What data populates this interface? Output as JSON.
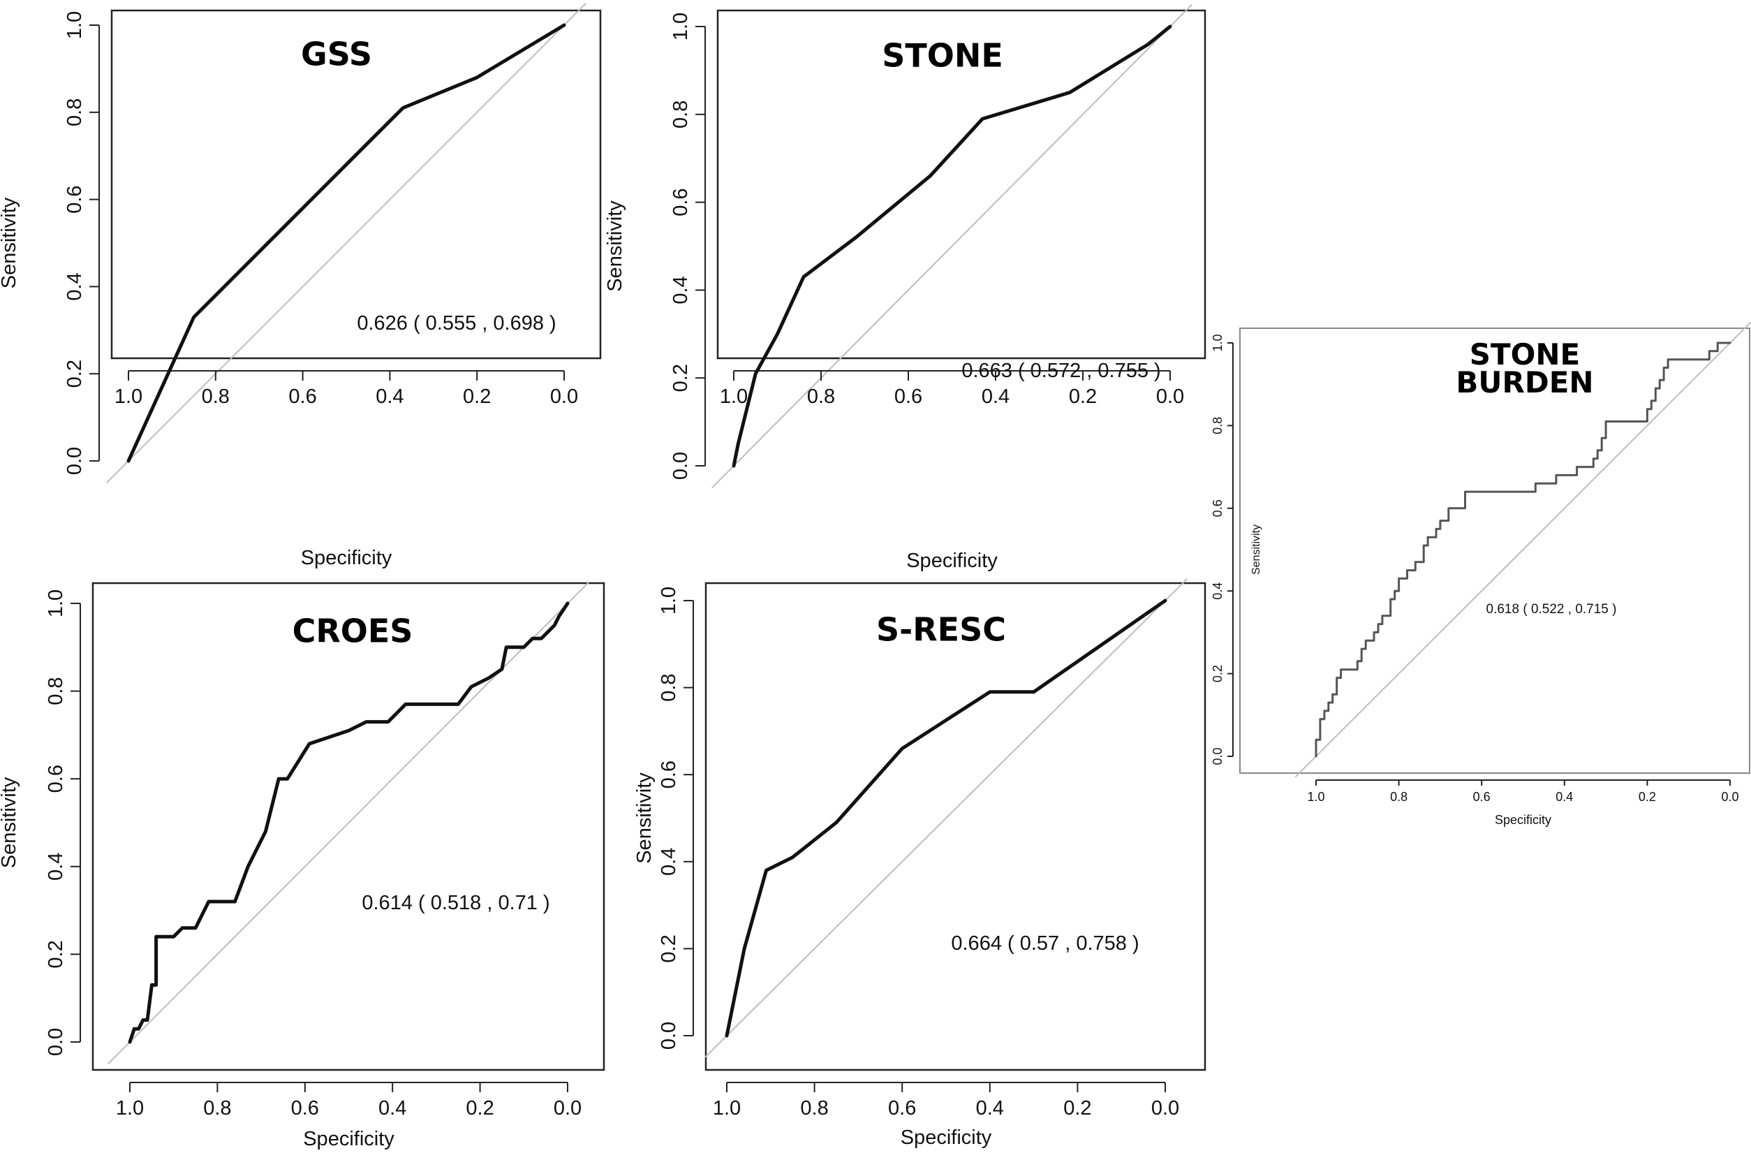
{
  "chart_data": [
    {
      "type": "line",
      "title": "GSS",
      "xlabel": "Specificity",
      "ylabel": "Sensitivity",
      "xlim": [
        1.0,
        0.0
      ],
      "ylim": [
        0.0,
        1.0
      ],
      "x_ticks": [
        "1.0",
        "0.8",
        "0.6",
        "0.4",
        "0.2",
        "0.0"
      ],
      "y_ticks": [
        "0.0",
        "0.2",
        "0.4",
        "0.6",
        "0.8",
        "1.0"
      ],
      "annotation": "0.626 ( 0.555 ,  0.698 )",
      "series": [
        {
          "specificity": [
            1.0,
            0.85,
            0.65,
            0.5,
            0.37,
            0.2,
            0.0
          ],
          "sensitivity": [
            0.0,
            0.33,
            0.53,
            0.68,
            0.81,
            0.88,
            1.0
          ]
        }
      ]
    },
    {
      "type": "line",
      "title": "STONE",
      "xlabel": "Specificity",
      "ylabel": "Sensitivity",
      "xlim": [
        1.0,
        0.0
      ],
      "ylim": [
        0.0,
        1.0
      ],
      "x_ticks": [
        "1.0",
        "0.8",
        "0.6",
        "0.4",
        "0.2",
        "0.0"
      ],
      "y_ticks": [
        "0.0",
        "0.2",
        "0.4",
        "0.6",
        "0.8",
        "1.0"
      ],
      "annotation": "0.663 ( 0.572 ,  0.755 )",
      "series": [
        {
          "specificity": [
            1.0,
            0.99,
            0.95,
            0.9,
            0.84,
            0.72,
            0.55,
            0.43,
            0.23,
            0.05,
            0.0
          ],
          "sensitivity": [
            0.0,
            0.05,
            0.21,
            0.3,
            0.43,
            0.52,
            0.66,
            0.79,
            0.85,
            0.96,
            1.0
          ]
        }
      ]
    },
    {
      "type": "line",
      "title": "CROES",
      "xlabel": "Specificity",
      "ylabel": "Sensitivity",
      "xlim": [
        1.0,
        0.0
      ],
      "ylim": [
        0.0,
        1.0
      ],
      "x_ticks": [
        "1.0",
        "0.8",
        "0.6",
        "0.4",
        "0.2",
        "0.0"
      ],
      "y_ticks": [
        "0.0",
        "0.2",
        "0.4",
        "0.6",
        "0.8",
        "1.0"
      ],
      "annotation": "0.614 ( 0.518 ,  0.71 )",
      "series": [
        {
          "specificity": [
            1.0,
            0.99,
            0.98,
            0.97,
            0.96,
            0.95,
            0.94,
            0.94,
            0.9,
            0.88,
            0.85,
            0.82,
            0.76,
            0.73,
            0.69,
            0.66,
            0.64,
            0.59,
            0.5,
            0.46,
            0.41,
            0.37,
            0.25,
            0.22,
            0.18,
            0.15,
            0.14,
            0.12,
            0.1,
            0.08,
            0.06,
            0.03,
            0.02,
            0.0
          ],
          "sensitivity": [
            0.0,
            0.03,
            0.03,
            0.05,
            0.05,
            0.13,
            0.13,
            0.24,
            0.24,
            0.26,
            0.26,
            0.32,
            0.32,
            0.4,
            0.48,
            0.6,
            0.6,
            0.68,
            0.71,
            0.73,
            0.73,
            0.77,
            0.77,
            0.81,
            0.83,
            0.85,
            0.9,
            0.9,
            0.9,
            0.92,
            0.92,
            0.95,
            0.97,
            1.0
          ]
        }
      ]
    },
    {
      "type": "line",
      "title": "S-RESC",
      "xlabel": "Specificity",
      "ylabel": "Sensitivity",
      "xlim": [
        1.0,
        0.0
      ],
      "ylim": [
        0.0,
        1.0
      ],
      "x_ticks": [
        "1.0",
        "0.8",
        "0.6",
        "0.4",
        "0.2",
        "0.0"
      ],
      "y_ticks": [
        "0.0",
        "0.2",
        "0.4",
        "0.6",
        "0.8",
        "1.0"
      ],
      "annotation": "0.664 ( 0.57 ,  0.758 )",
      "series": [
        {
          "specificity": [
            1.0,
            0.96,
            0.91,
            0.85,
            0.75,
            0.6,
            0.4,
            0.3,
            0.0
          ],
          "sensitivity": [
            0.0,
            0.2,
            0.38,
            0.41,
            0.49,
            0.66,
            0.79,
            0.79,
            1.0
          ]
        }
      ]
    },
    {
      "type": "line",
      "title": "STONE BURDEN",
      "title_lines": [
        "STONE",
        "BURDEN"
      ],
      "xlabel": "Specificity",
      "ylabel": "Sensitivity",
      "xlim": [
        1.0,
        0.0
      ],
      "ylim": [
        0.0,
        1.0
      ],
      "x_ticks": [
        "1.0",
        "0.8",
        "0.6",
        "0.4",
        "0.2",
        "0.0"
      ],
      "y_ticks": [
        "0.0",
        "0.2",
        "0.4",
        "0.6",
        "0.8",
        "1.0"
      ],
      "annotation": "0.618 ( 0.522 ,  0.715 )",
      "series": [
        {
          "specificity": [
            1.0,
            1.0,
            0.99,
            0.99,
            0.98,
            0.98,
            0.97,
            0.97,
            0.96,
            0.96,
            0.95,
            0.95,
            0.94,
            0.94,
            0.9,
            0.9,
            0.89,
            0.89,
            0.88,
            0.88,
            0.86,
            0.86,
            0.85,
            0.85,
            0.84,
            0.84,
            0.82,
            0.82,
            0.81,
            0.81,
            0.8,
            0.8,
            0.78,
            0.78,
            0.76,
            0.76,
            0.74,
            0.74,
            0.73,
            0.73,
            0.71,
            0.71,
            0.7,
            0.7,
            0.68,
            0.68,
            0.64,
            0.64,
            0.47,
            0.47,
            0.42,
            0.42,
            0.37,
            0.37,
            0.33,
            0.33,
            0.32,
            0.32,
            0.31,
            0.31,
            0.3,
            0.3,
            0.29,
            0.29,
            0.2,
            0.2,
            0.19,
            0.19,
            0.18,
            0.18,
            0.17,
            0.17,
            0.16,
            0.16,
            0.15,
            0.15,
            0.05,
            0.05,
            0.03,
            0.03,
            0.0
          ],
          "sensitivity": [
            0.0,
            0.04,
            0.04,
            0.09,
            0.09,
            0.11,
            0.11,
            0.13,
            0.13,
            0.15,
            0.15,
            0.19,
            0.19,
            0.21,
            0.21,
            0.23,
            0.23,
            0.26,
            0.26,
            0.28,
            0.28,
            0.3,
            0.3,
            0.32,
            0.32,
            0.34,
            0.34,
            0.38,
            0.38,
            0.4,
            0.4,
            0.43,
            0.43,
            0.45,
            0.45,
            0.47,
            0.47,
            0.51,
            0.51,
            0.53,
            0.53,
            0.55,
            0.55,
            0.57,
            0.57,
            0.6,
            0.6,
            0.64,
            0.64,
            0.66,
            0.66,
            0.68,
            0.68,
            0.7,
            0.7,
            0.72,
            0.72,
            0.74,
            0.74,
            0.77,
            0.77,
            0.81,
            0.81,
            0.81,
            0.81,
            0.84,
            0.84,
            0.86,
            0.86,
            0.89,
            0.89,
            0.91,
            0.91,
            0.94,
            0.94,
            0.96,
            0.96,
            0.98,
            0.98,
            1.0,
            1.0
          ]
        }
      ]
    }
  ]
}
